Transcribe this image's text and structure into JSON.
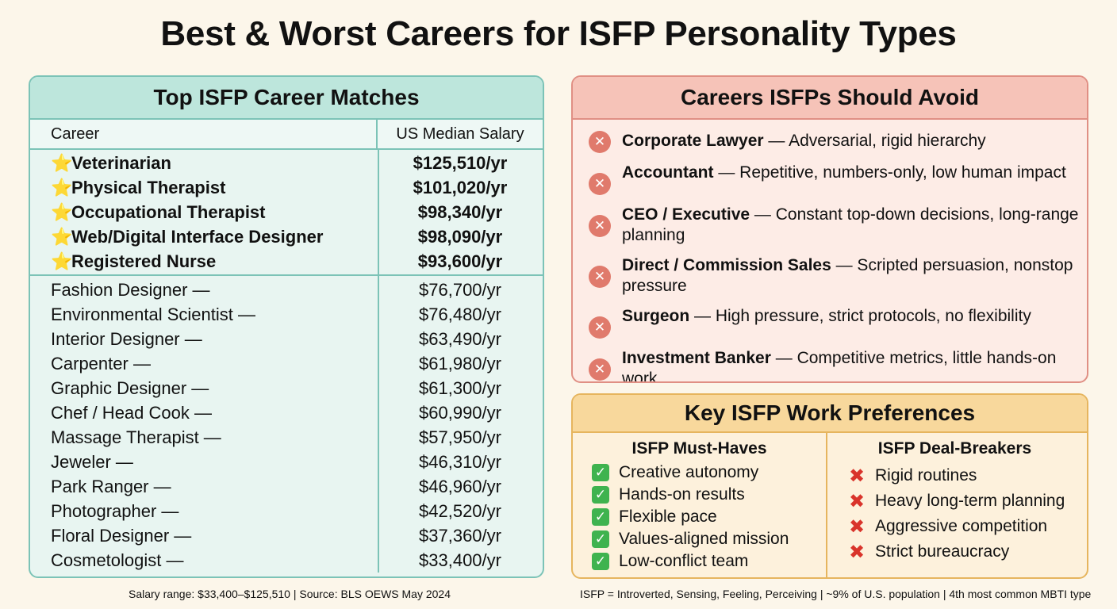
{
  "title": "Best & Worst Careers for ISFP Personality Types",
  "top_matches": {
    "heading": "Top ISFP Career Matches",
    "col_career": "Career",
    "col_salary": "US Median Salary",
    "top": [
      {
        "career": "Veterinarian",
        "salary": "$125,510/yr"
      },
      {
        "career": "Physical Therapist",
        "salary": "$101,020/yr"
      },
      {
        "career": "Occupational Therapist",
        "salary": "$98,340/yr"
      },
      {
        "career": "Web/Digital Interface Designer",
        "salary": "$98,090/yr"
      },
      {
        "career": "Registered Nurse",
        "salary": "$93,600/yr"
      }
    ],
    "others": [
      {
        "career": "Fashion Designer —",
        "salary": "$76,700/yr"
      },
      {
        "career": "Environmental Scientist —",
        "salary": "$76,480/yr"
      },
      {
        "career": "Interior Designer —",
        "salary": "$63,490/yr"
      },
      {
        "career": "Carpenter —",
        "salary": "$61,980/yr"
      },
      {
        "career": "Graphic Designer —",
        "salary": "$61,300/yr"
      },
      {
        "career": "Chef / Head Cook —",
        "salary": "$60,990/yr"
      },
      {
        "career": "Massage Therapist —",
        "salary": "$57,950/yr"
      },
      {
        "career": "Jeweler —",
        "salary": "$46,310/yr"
      },
      {
        "career": "Park Ranger —",
        "salary": "$46,960/yr"
      },
      {
        "career": "Photographer —",
        "salary": "$42,520/yr"
      },
      {
        "career": "Floral Designer —",
        "salary": "$37,360/yr"
      },
      {
        "career": "Cosmetologist —",
        "salary": "$33,400/yr"
      }
    ]
  },
  "avoid": {
    "heading": "Careers ISFPs Should Avoid",
    "items": [
      {
        "career": "Corporate Lawyer",
        "reason": " — Adversarial, rigid hierarchy"
      },
      {
        "career": "Accountant",
        "reason": " — Repetitive, numbers-only, low human impact"
      },
      {
        "career": "CEO / Executive",
        "reason": " — Constant top-down decisions, long-range planning"
      },
      {
        "career": "Direct / Commission Sales",
        "reason": " — Scripted persuasion, nonstop pressure"
      },
      {
        "career": "Surgeon",
        "reason": " — High pressure, strict protocols, no flexibility"
      },
      {
        "career": "Investment Banker",
        "reason": " — Competitive metrics, little hands-on work"
      }
    ]
  },
  "prefs": {
    "heading": "Key ISFP Work Preferences",
    "must_title": "ISFP Must-Haves",
    "must": [
      "Creative autonomy",
      "Hands-on results",
      "Flexible pace",
      "Values-aligned mission",
      "Low-conflict team"
    ],
    "deal_title": "ISFP Deal-Breakers",
    "deal": [
      "Rigid routines",
      "Heavy long-term planning",
      "Aggressive competition",
      "Strict bureaucracy"
    ]
  },
  "footer": {
    "left": "Salary range: $33,400–$125,510 | Source: BLS OEWS May 2024",
    "right": "ISFP = Introverted, Sensing, Feeling, Perceiving | ~9% of U.S. population | 4th most common MBTI type"
  },
  "icons": {
    "star": "star-icon",
    "avoid": "x-circle-icon",
    "must": "check-box-icon",
    "deal": "cross-icon"
  },
  "colors": {
    "teal_border": "#7cc3b7",
    "teal_header": "#bde6dc",
    "red_border": "#e08f84",
    "red_header": "#f6c3b8",
    "gold_border": "#e6b55e",
    "gold_header": "#f8d89c",
    "check_green": "#3fb34f",
    "cross_red": "#d9342b"
  }
}
